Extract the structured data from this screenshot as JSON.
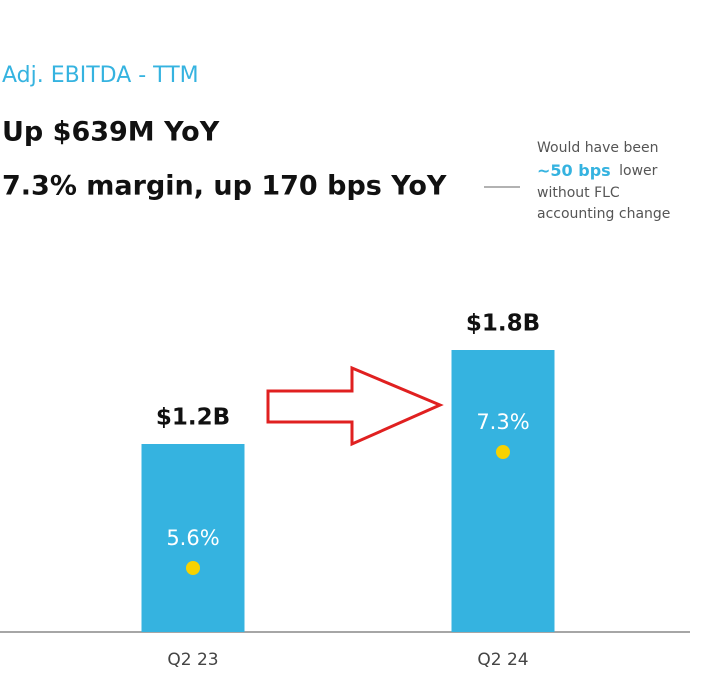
{
  "chart_data": {
    "type": "bar",
    "title": "Adj. EBITDA - TTM",
    "subtitle": [
      "Up $639M YoY",
      "7.3% margin, up 170 bps YoY"
    ],
    "annotation": {
      "line1": "Would have been",
      "highlight": "~50 bps",
      "rest": "lower",
      "line3": "without FLC",
      "line4": "accounting change"
    },
    "categories": [
      "Q2 23",
      "Q2 24"
    ],
    "values": [
      1.2,
      1.8
    ],
    "value_labels": [
      "$1.2B",
      "$1.8B"
    ],
    "margins": [
      5.6,
      7.3
    ],
    "margin_labels": [
      "5.6%",
      "7.3%"
    ],
    "color": "#35b3e0",
    "margin_color": "#f7d200"
  }
}
